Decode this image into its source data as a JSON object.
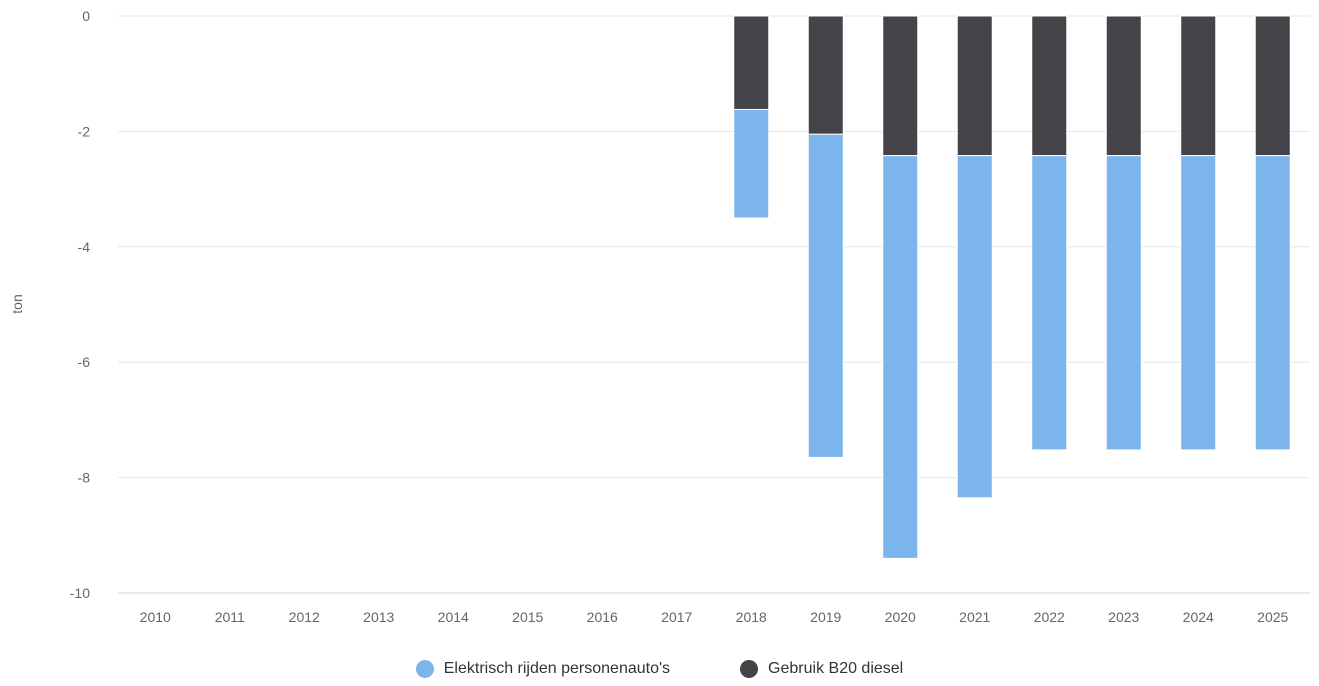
{
  "chart_data": {
    "type": "bar",
    "stacked": true,
    "ylabel": "ton",
    "ylim": [
      -10,
      0
    ],
    "yticks": [
      0,
      -2,
      -4,
      -6,
      -8,
      -10
    ],
    "categories": [
      "2010",
      "2011",
      "2012",
      "2013",
      "2014",
      "2015",
      "2016",
      "2017",
      "2018",
      "2019",
      "2020",
      "2021",
      "2022",
      "2023",
      "2024",
      "2025"
    ],
    "series": [
      {
        "name": "Gebruik B20 diesel",
        "color": "#434348",
        "values": [
          0,
          0,
          0,
          0,
          0,
          0,
          0,
          0,
          -1.62,
          -2.05,
          -2.42,
          -2.42,
          -2.42,
          -2.42,
          -2.42,
          -2.42
        ]
      },
      {
        "name": "Elektrisch rijden personenauto's",
        "color": "#7cb5ec",
        "values": [
          0,
          0,
          0,
          0,
          0,
          0,
          0,
          0,
          -1.88,
          -5.6,
          -6.98,
          -5.93,
          -5.1,
          -5.1,
          -5.1,
          -5.1
        ]
      }
    ],
    "legend": {
      "position": "bottom",
      "items": [
        "Elektrisch rijden personenauto's",
        "Gebruik B20 diesel"
      ]
    },
    "grid": true
  }
}
